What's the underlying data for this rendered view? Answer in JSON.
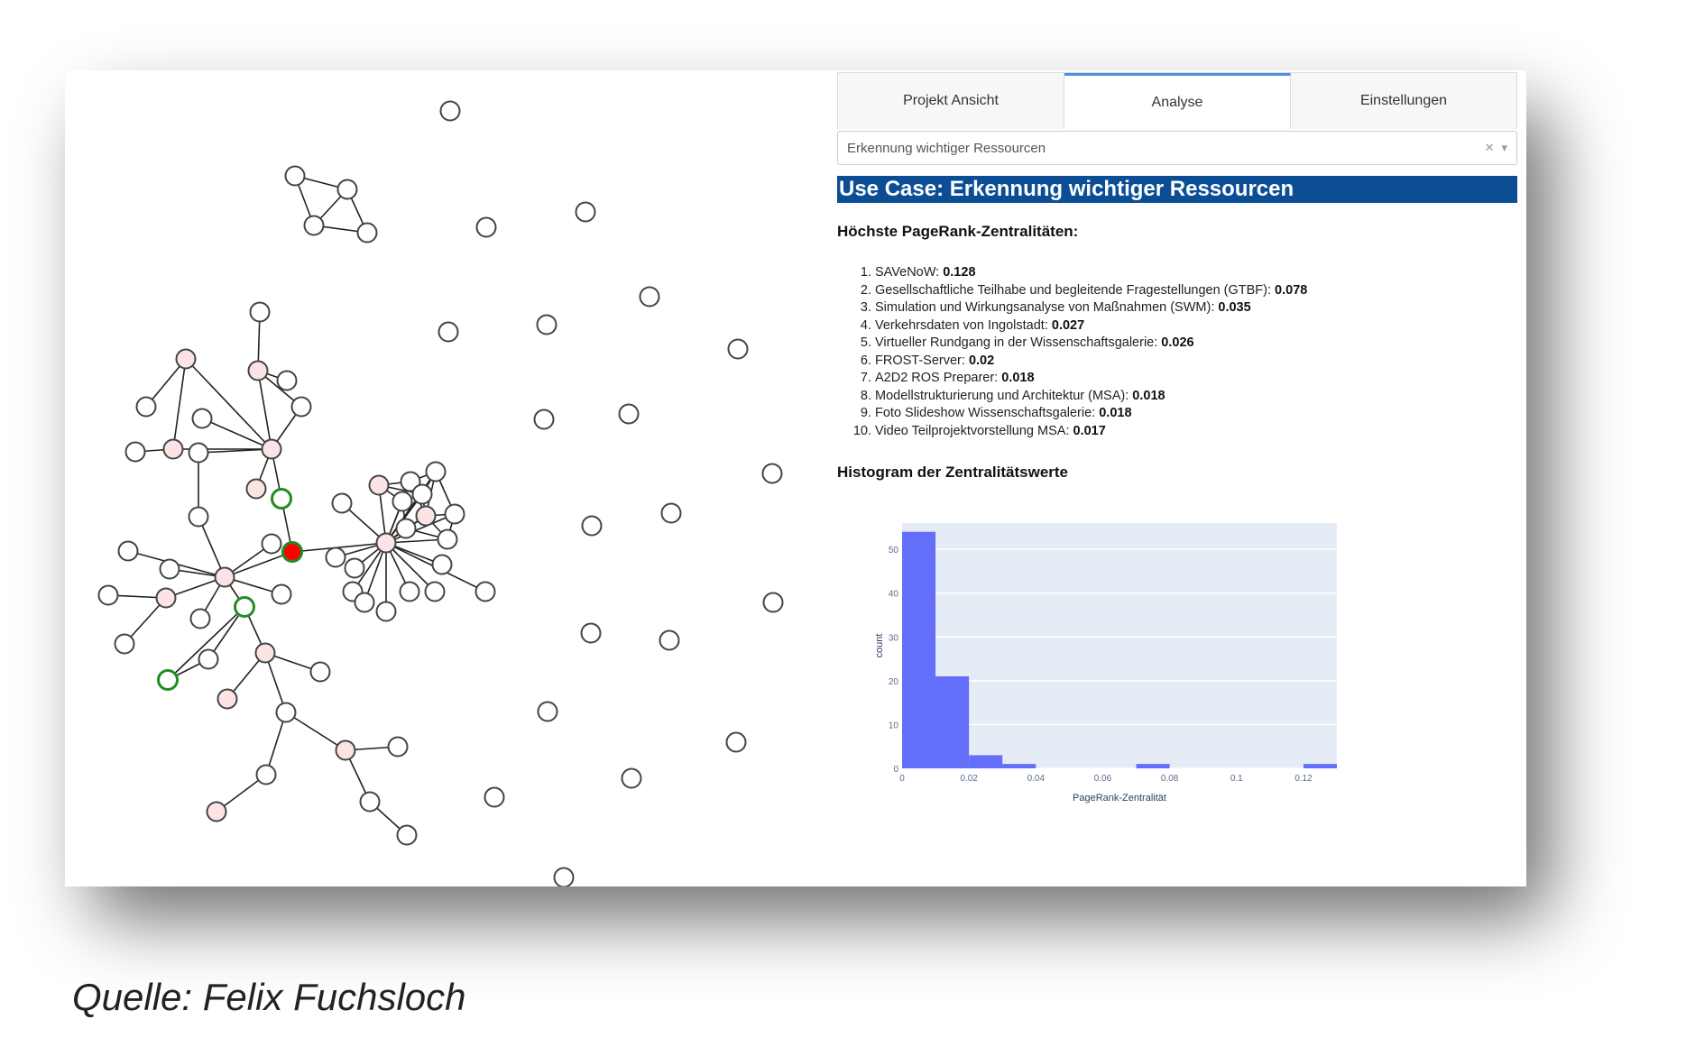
{
  "tabs": [
    "Projekt Ansicht",
    "Analyse",
    "Einstellungen"
  ],
  "active_tab": 1,
  "dropdown": {
    "value": "Erkennung wichtiger Ressourcen",
    "clear_icon": "close-icon",
    "open_icon": "chevron-down-icon"
  },
  "use_case_title": "Use Case: Erkennung wichtiger Ressourcen",
  "pagerank_heading": "Höchste PageRank-Zentralitäten:",
  "ranking": [
    {
      "name": "SAVeNoW:",
      "value": "0.128"
    },
    {
      "name": "Gesellschaftliche Teilhabe und begleitende Fragestellungen (GTBF):",
      "value": "0.078"
    },
    {
      "name": "Simulation und Wirkungsanalyse von Maßnahmen (SWM):",
      "value": "0.035"
    },
    {
      "name": "Verkehrsdaten von Ingolstadt:",
      "value": "0.027"
    },
    {
      "name": "Virtueller Rundgang in der Wissenschaftsgalerie:",
      "value": "0.026"
    },
    {
      "name": "FROST-Server:",
      "value": "0.02"
    },
    {
      "name": "A2D2 ROS Preparer:",
      "value": "0.018"
    },
    {
      "name": "Modellstrukturierung und Architektur (MSA):",
      "value": "0.018"
    },
    {
      "name": "Foto Slideshow Wissenschaftsgalerie:",
      "value": "0.018"
    },
    {
      "name": "Video Teilprojektvorstellung MSA:",
      "value": "0.017"
    }
  ],
  "histogram_heading": "Histogram der Zentralitätswerte",
  "chart_data": {
    "type": "bar",
    "title": "",
    "xlabel": "PageRank-Zentralität",
    "ylabel": "count",
    "xlim": [
      0,
      0.13
    ],
    "ylim": [
      0,
      56
    ],
    "x_ticks": [
      0,
      0.02,
      0.04,
      0.06,
      0.08,
      0.1,
      0.12
    ],
    "x_tick_labels": [
      "0",
      "0.02",
      "0.04",
      "0.06",
      "0.08",
      "0.1",
      "0.12"
    ],
    "y_ticks": [
      0,
      10,
      20,
      30,
      40,
      50
    ],
    "bin_width": 0.01,
    "bins": [
      {
        "x0": 0.0,
        "x1": 0.01,
        "count": 54
      },
      {
        "x0": 0.01,
        "x1": 0.02,
        "count": 21
      },
      {
        "x0": 0.02,
        "x1": 0.03,
        "count": 3
      },
      {
        "x0": 0.03,
        "x1": 0.04,
        "count": 1
      },
      {
        "x0": 0.07,
        "x1": 0.08,
        "count": 1
      },
      {
        "x0": 0.12,
        "x1": 0.13,
        "count": 1
      }
    ],
    "bar_color": "#636efa",
    "plot_bg": "#e5ecf6"
  },
  "colors": {
    "title_bg": "#0b4e96",
    "node_top": "#ff0000",
    "node_highlight": "#228b22",
    "node_central": "#fde4e4",
    "node_default": "#ffffff"
  },
  "source": "Quelle: Felix Fuchsloch"
}
